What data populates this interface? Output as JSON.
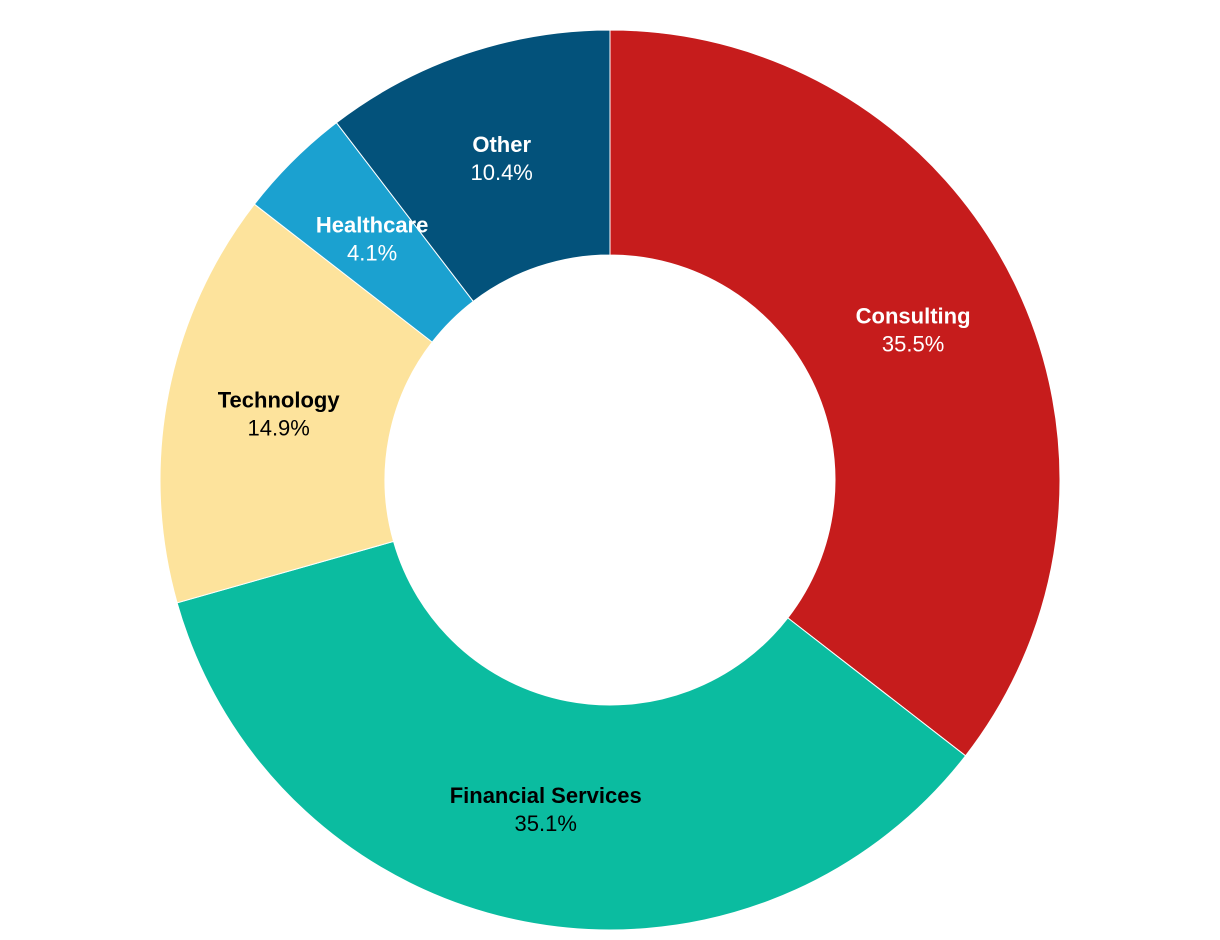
{
  "chart_data": {
    "type": "donut",
    "categories": [
      "Consulting",
      "Financial Services",
      "Technology",
      "Healthcare",
      "Other"
    ],
    "values": [
      35.5,
      35.1,
      14.9,
      4.1,
      10.4
    ],
    "value_labels": [
      "35.5%",
      "35.1%",
      "14.9%",
      "4.1%",
      "10.4%"
    ],
    "colors": [
      "#c61c1c",
      "#0bbca0",
      "#fde39c",
      "#1ba1d0",
      "#03527b"
    ]
  }
}
